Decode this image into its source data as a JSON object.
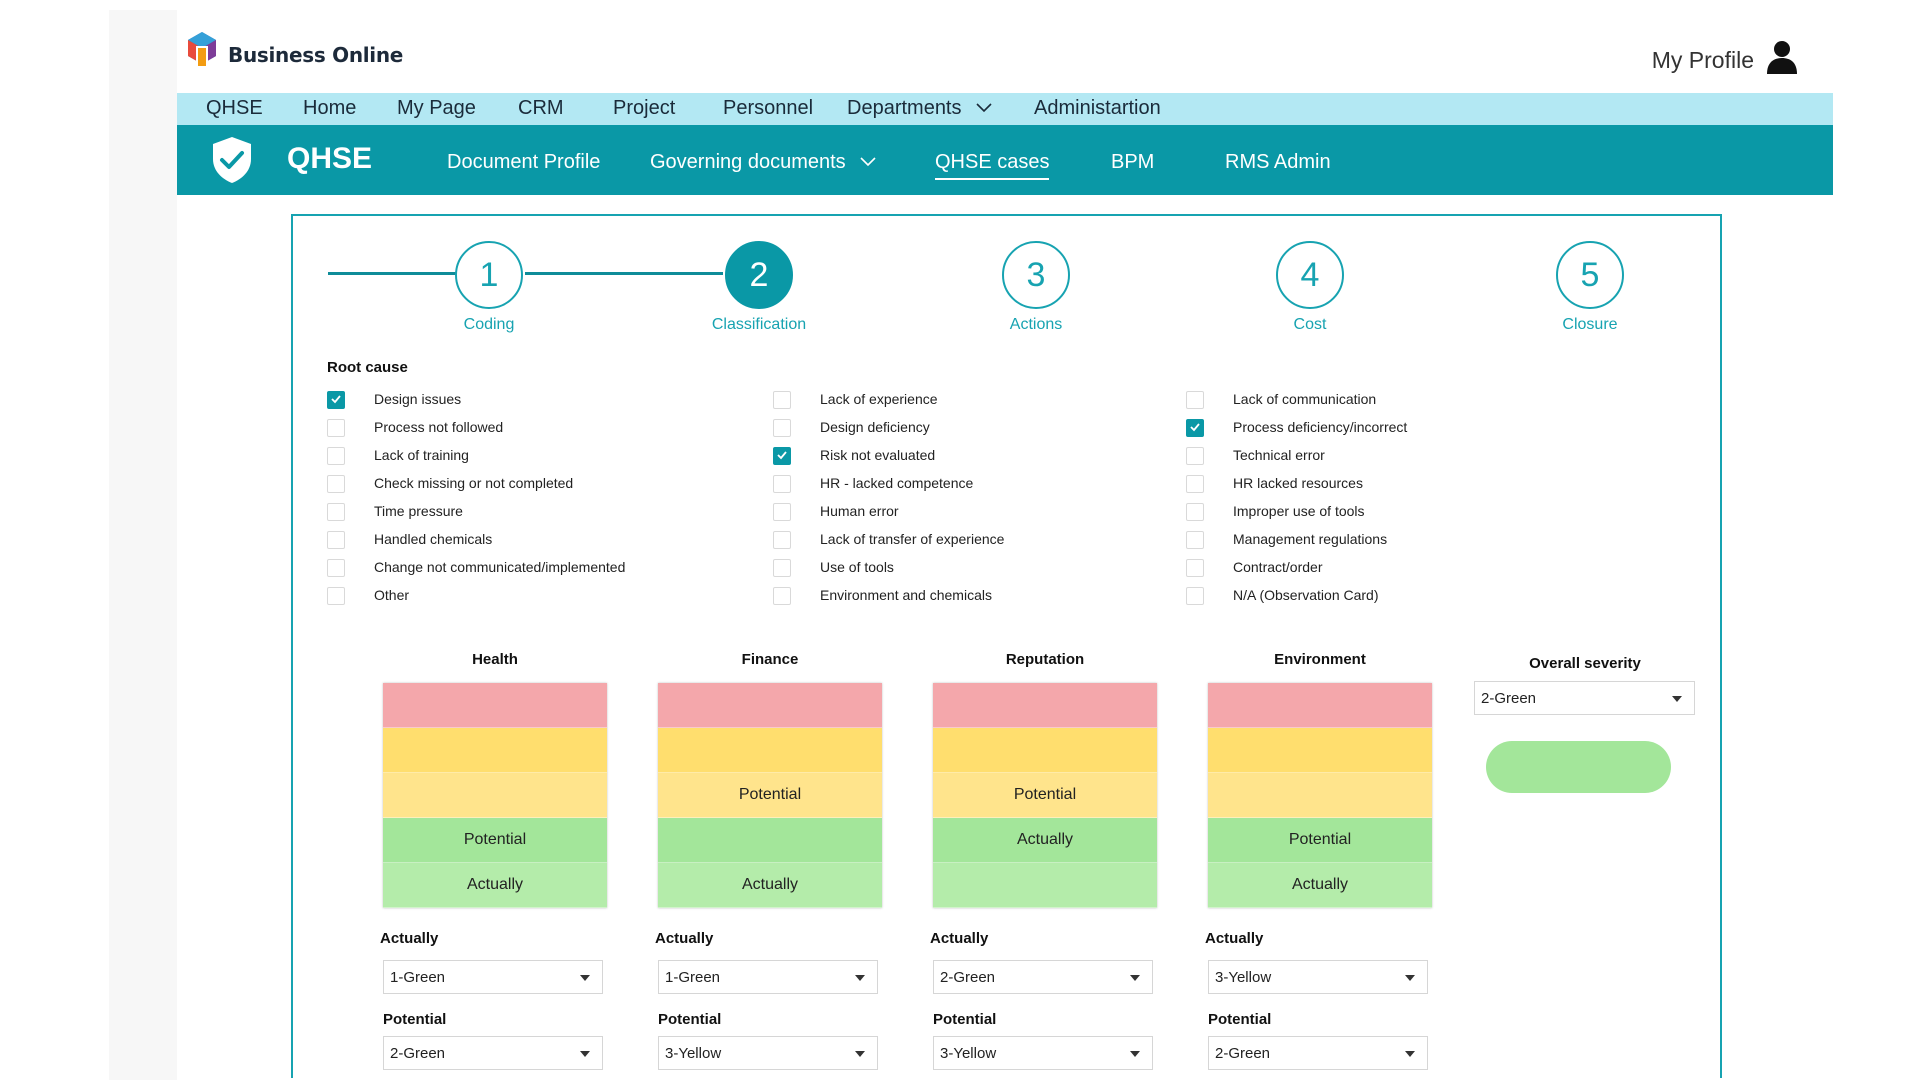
{
  "brand": {
    "name": "Business Online"
  },
  "profile": {
    "label": "My Profile"
  },
  "topnav": {
    "items": [
      "QHSE",
      "Home",
      "My Page",
      "CRM",
      "Project",
      "Personnel",
      "Departments",
      "Administartion"
    ]
  },
  "subnav": {
    "title": "QHSE",
    "items": [
      "Document Profile",
      "Governing documents",
      "QHSE cases",
      "BPM",
      "RMS Admin"
    ],
    "active": "QHSE cases"
  },
  "steps": [
    {
      "number": "1",
      "label": "Coding"
    },
    {
      "number": "2",
      "label": "Classification"
    },
    {
      "number": "3",
      "label": "Actions"
    },
    {
      "number": "4",
      "label": "Cost"
    },
    {
      "number": "5",
      "label": "Closure"
    }
  ],
  "current_step": "2",
  "root_cause": {
    "title": "Root cause",
    "columns": [
      [
        {
          "label": "Design issues",
          "checked": true
        },
        {
          "label": "Process not followed",
          "checked": false
        },
        {
          "label": "Lack of training",
          "checked": false
        },
        {
          "label": "Check missing or not completed",
          "checked": false
        },
        {
          "label": "Time pressure",
          "checked": false
        },
        {
          "label": "Handled chemicals",
          "checked": false
        },
        {
          "label": "Change not communicated/implemented",
          "checked": false
        },
        {
          "label": "Other",
          "checked": false
        }
      ],
      [
        {
          "label": "Lack of experience",
          "checked": false
        },
        {
          "label": "Design deficiency",
          "checked": false
        },
        {
          "label": "Risk not evaluated",
          "checked": true
        },
        {
          "label": "HR - lacked competence",
          "checked": false
        },
        {
          "label": "Human error",
          "checked": false
        },
        {
          "label": "Lack of transfer of experience",
          "checked": false
        },
        {
          "label": "Use of tools",
          "checked": false
        },
        {
          "label": "Environment and chemicals",
          "checked": false
        }
      ],
      [
        {
          "label": "Lack of communication",
          "checked": false
        },
        {
          "label": "Process deficiency/incorrect",
          "checked": true
        },
        {
          "label": "Technical error",
          "checked": false
        },
        {
          "label": "HR lacked resources",
          "checked": false
        },
        {
          "label": "Improper use of tools",
          "checked": false
        },
        {
          "label": "Management regulations",
          "checked": false
        },
        {
          "label": "Contract/order",
          "checked": false
        },
        {
          "label": "N/A (Observation Card)",
          "checked": false
        }
      ]
    ]
  },
  "matrices": [
    {
      "title": "Health",
      "bands": [
        "",
        "",
        "",
        "Potential",
        "Actually"
      ],
      "actually_label": "Actually",
      "actually_value": "1-Green",
      "potential_label": "Potential",
      "potential_value": "2-Green"
    },
    {
      "title": "Finance",
      "bands": [
        "",
        "",
        "Potential",
        "",
        "Actually"
      ],
      "actually_label": "Actually",
      "actually_value": "1-Green",
      "potential_label": "Potential",
      "potential_value": "3-Yellow"
    },
    {
      "title": "Reputation",
      "bands": [
        "",
        "",
        "Potential",
        "Actually",
        ""
      ],
      "actually_label": "Actually",
      "actually_value": "2-Green",
      "potential_label": "Potential",
      "potential_value": "3-Yellow"
    },
    {
      "title": "Environment",
      "bands": [
        "",
        "",
        "",
        "Potential",
        "Actually"
      ],
      "actually_label": "Actually",
      "actually_value": "3-Yellow",
      "potential_label": "Potential",
      "potential_value": "2-Green"
    }
  ],
  "overall": {
    "title": "Overall severity",
    "value": "2-Green",
    "indicator_color": "#a3e69a"
  },
  "colors": {
    "teal": "#0a98a6",
    "light_teal": "#b3e8f3",
    "red": "#f4a7ab",
    "yellow": "#ffde6e",
    "green": "#a3e69a"
  },
  "icons": [
    "brand-logo-icon",
    "user-icon",
    "chevron-down-icon",
    "shield-check-icon",
    "checkbox-check-icon",
    "dropdown-arrow-icon"
  ]
}
